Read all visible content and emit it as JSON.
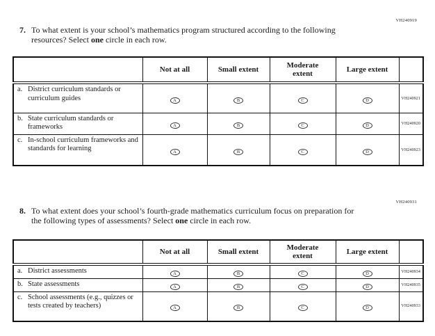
{
  "options": [
    "A",
    "B",
    "C",
    "D"
  ],
  "q7": {
    "code": "VH240919",
    "number": "7.",
    "text1": "To what extent is your school’s mathematics program structured according to the following resources? Select ",
    "bold": "one",
    "text2": " circle in each row.",
    "headers": [
      "Not at all",
      "Small extent",
      "Moderate extent",
      "Large extent"
    ],
    "rows": [
      {
        "prefix": "a.",
        "label": "District curriculum standards or curriculum guides",
        "code": "VH240921"
      },
      {
        "prefix": "b.",
        "label": "State curriculum standards or frameworks",
        "code": "VH240920"
      },
      {
        "prefix": "c.",
        "label": "In-school curriculum frameworks and standards for learning",
        "code": "VH240923"
      }
    ]
  },
  "q8": {
    "code": "VH240931",
    "number": "8.",
    "text1": "To what extent does your school’s fourth-grade mathematics curriculum focus on preparation for the following types of assessments? Select ",
    "bold": "one",
    "text2": " circle in each row.",
    "headers": [
      "Not at all",
      "Small extent",
      "Moderate extent",
      "Large extent"
    ],
    "rows": [
      {
        "prefix": "a.",
        "label": "District assessments",
        "code": "VH240934"
      },
      {
        "prefix": "b.",
        "label": "State assessments",
        "code": "VH240935"
      },
      {
        "prefix": "c.",
        "label": "School assessments (e.g., quizzes or tests created by teachers)",
        "code": "VH240933"
      }
    ]
  }
}
